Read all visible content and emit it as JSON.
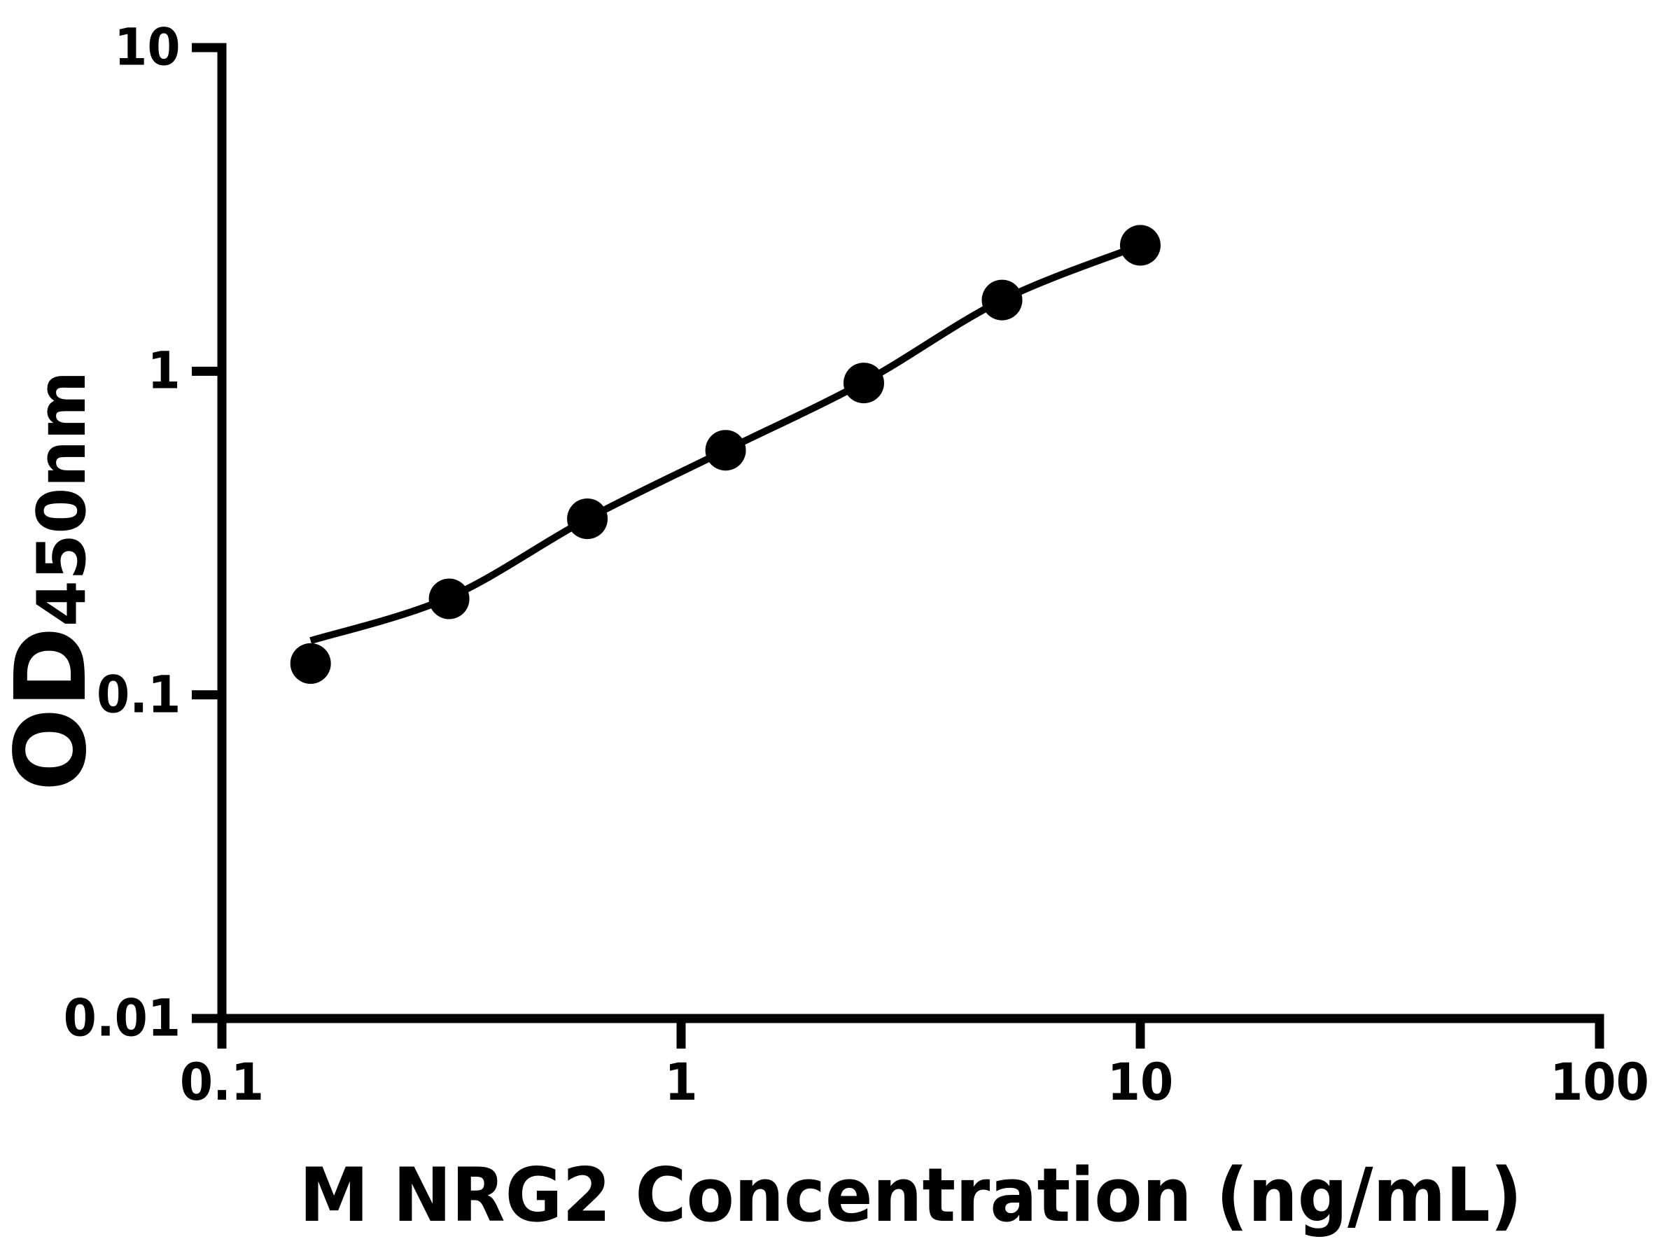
{
  "figure": {
    "xlabel": "M NRG2 Concentration (ng/mL)",
    "ylabel_main": "OD",
    "ylabel_sub": "450nm"
  },
  "chart_data": {
    "type": "scatter",
    "title": "",
    "xlabel": "M NRG2 Concentration (ng/mL)",
    "ylabel": "OD450nm",
    "x_scale": "log",
    "y_scale": "log",
    "xlim": [
      0.1,
      100
    ],
    "ylim": [
      0.01,
      10
    ],
    "grid": false,
    "legend_position": "none",
    "x_ticks": [
      {
        "value": 0.1,
        "label": "0.1"
      },
      {
        "value": 1,
        "label": "1"
      },
      {
        "value": 10,
        "label": "10"
      },
      {
        "value": 100,
        "label": "100"
      }
    ],
    "y_ticks": [
      {
        "value": 10,
        "label": "10"
      },
      {
        "value": 1,
        "label": "1"
      },
      {
        "value": 0.1,
        "label": "0.1"
      },
      {
        "value": 0.01,
        "label": "0.01"
      }
    ],
    "series": [
      {
        "name": "standard-points",
        "type": "scatter",
        "marker": "circle",
        "color": "#000000",
        "points": [
          {
            "x": 0.156,
            "y": 0.125
          },
          {
            "x": 0.3125,
            "y": 0.198
          },
          {
            "x": 0.625,
            "y": 0.35
          },
          {
            "x": 1.25,
            "y": 0.57
          },
          {
            "x": 2.5,
            "y": 0.92
          },
          {
            "x": 5,
            "y": 1.66
          },
          {
            "x": 10,
            "y": 2.45
          }
        ]
      },
      {
        "name": "fit-curve",
        "type": "line",
        "color": "#000000",
        "points": [
          {
            "x": 0.156,
            "y": 0.147
          },
          {
            "x": 0.3125,
            "y": 0.2
          },
          {
            "x": 0.625,
            "y": 0.35
          },
          {
            "x": 1.25,
            "y": 0.57
          },
          {
            "x": 2.5,
            "y": 0.925
          },
          {
            "x": 5,
            "y": 1.66
          },
          {
            "x": 10,
            "y": 2.45
          }
        ]
      }
    ],
    "colors": {
      "foreground": "#000000",
      "background": "#ffffff"
    }
  }
}
